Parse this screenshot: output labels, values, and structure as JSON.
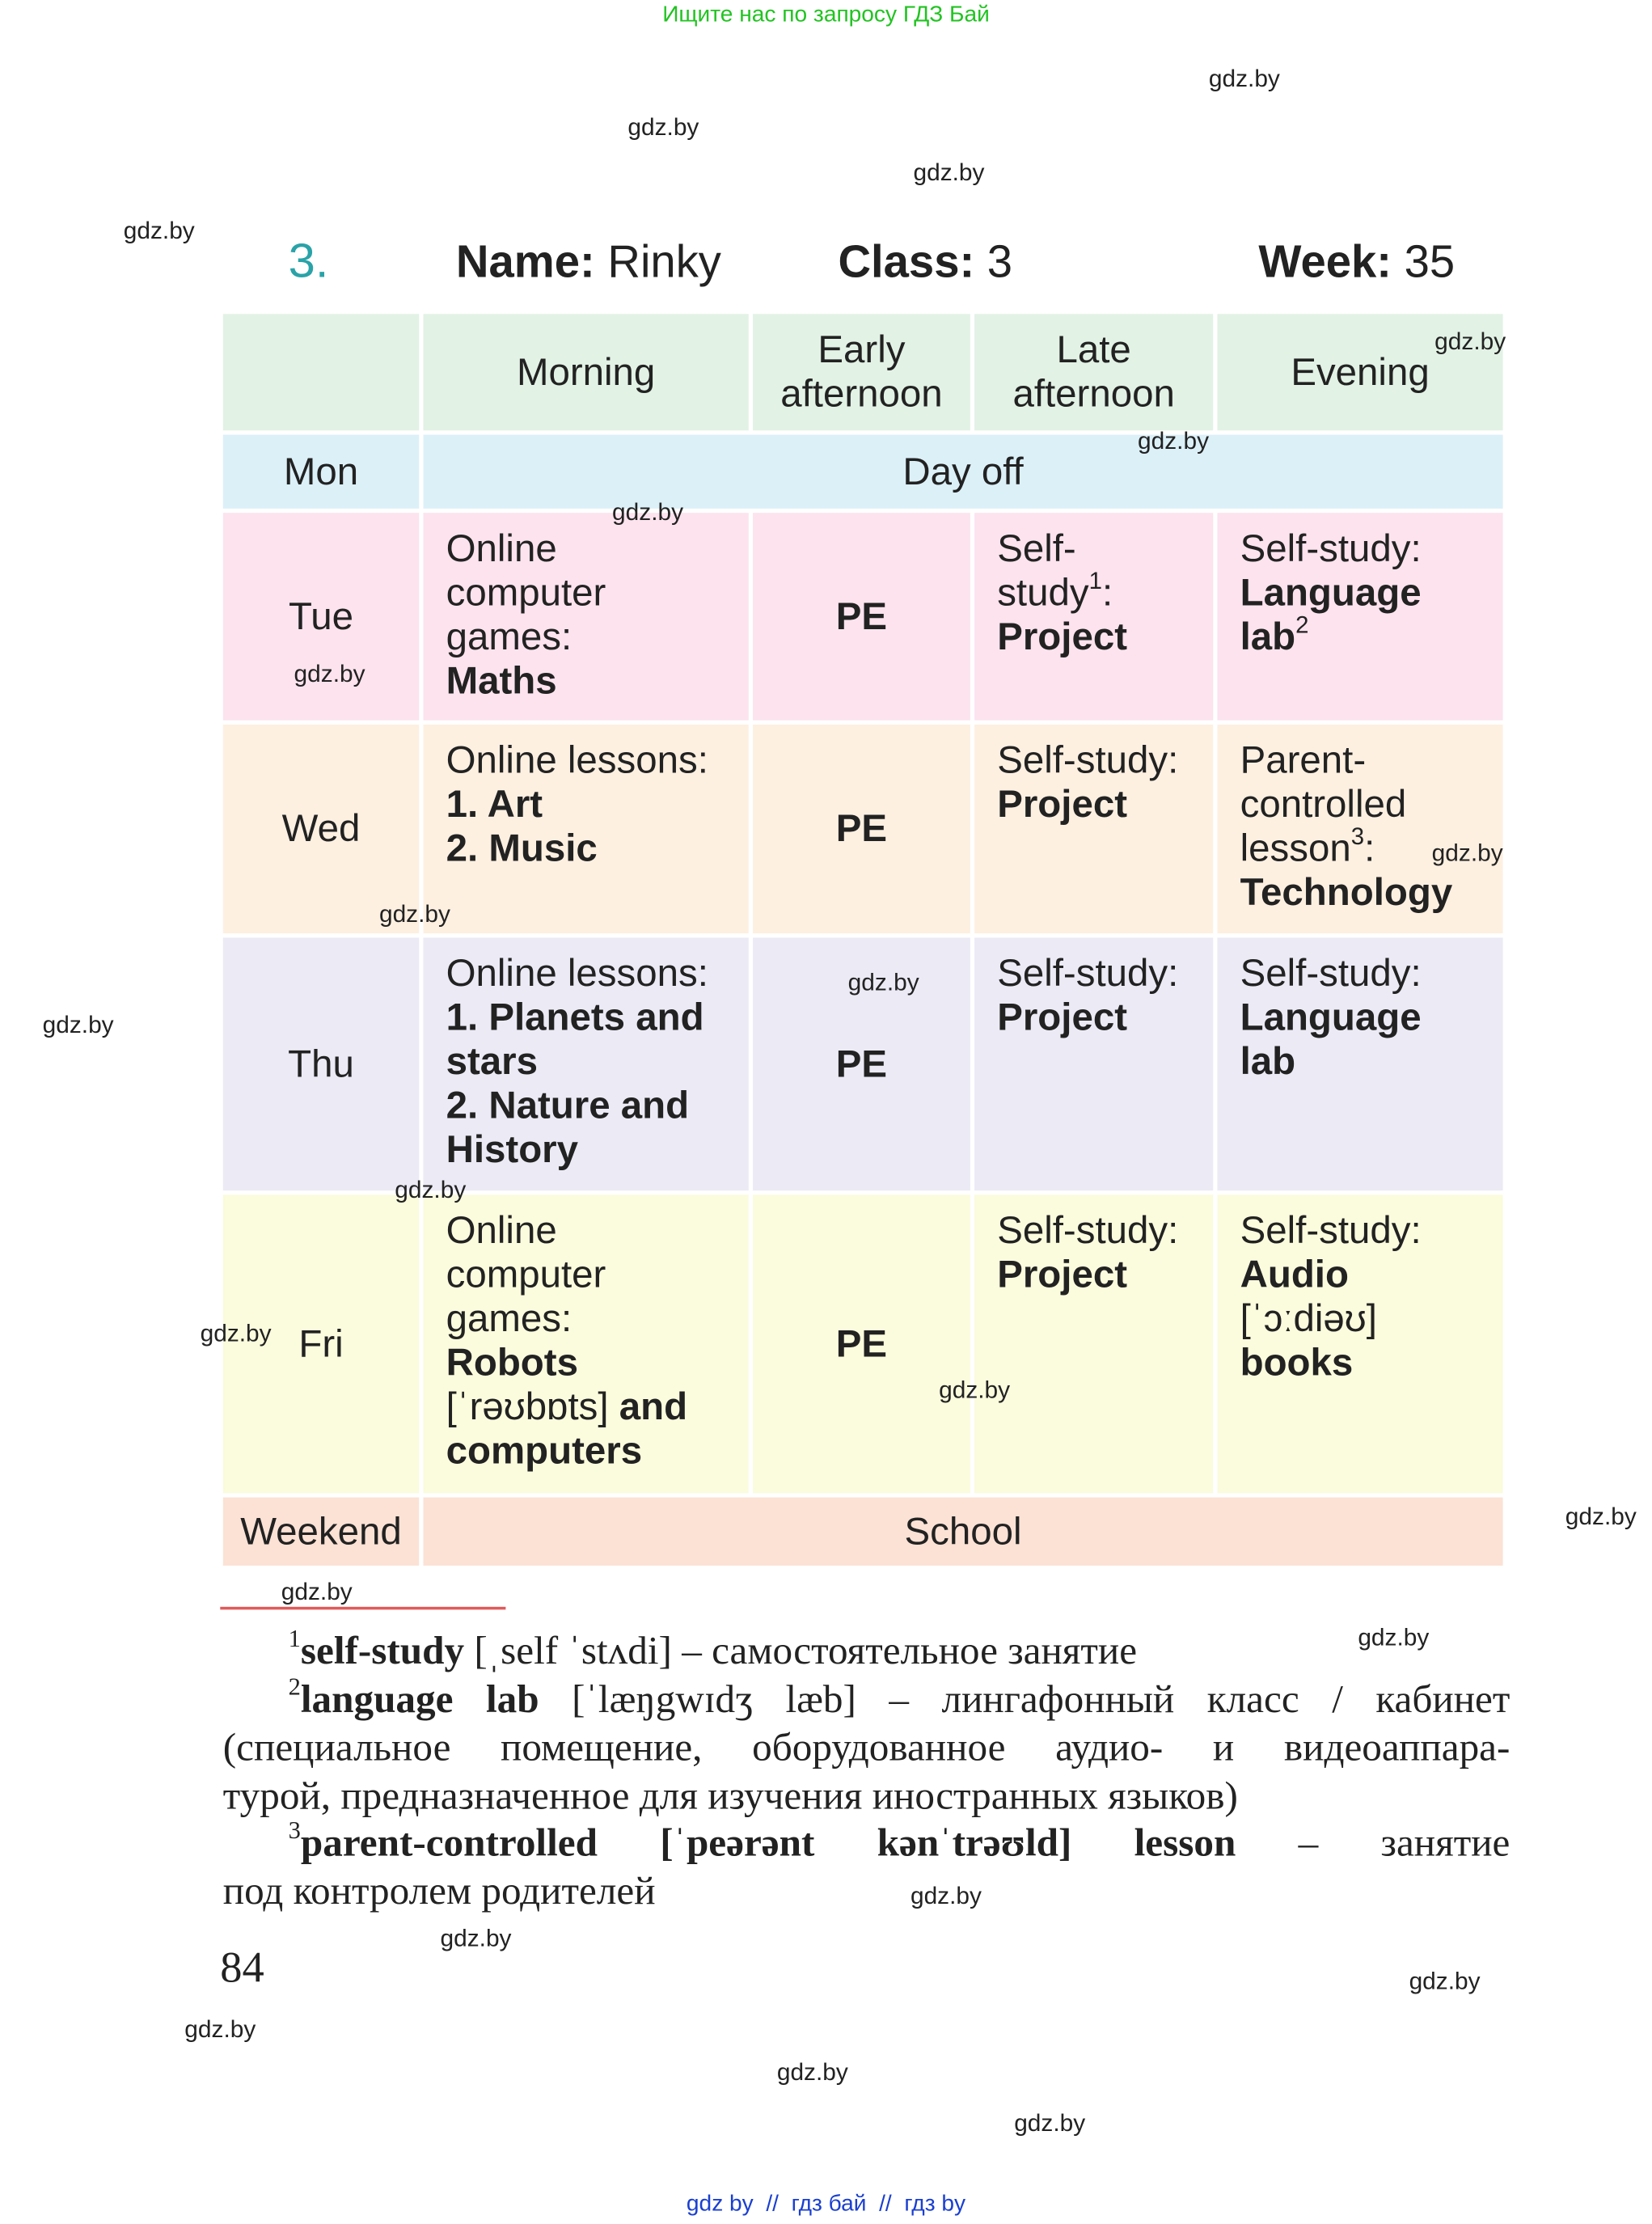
{
  "banner": "Ищите нас по запросу ГДЗ Бай",
  "exercise": {
    "number": "3.",
    "name_label": "Name:",
    "name": "Rinky",
    "class_label": "Class:",
    "class": "3",
    "week_label": "Week:",
    "week": "35"
  },
  "table": {
    "header": [
      [
        "Morning"
      ],
      [
        "Early",
        "afternoon"
      ],
      [
        "Late",
        "afternoon"
      ],
      [
        "Evening"
      ]
    ],
    "rows": [
      {
        "day": "Mon",
        "span": "Day off"
      },
      {
        "day": "Tue",
        "cells": [
          [
            [
              {
                "text": "Online"
              }
            ],
            [
              {
                "text": "computer"
              }
            ],
            [
              {
                "text": "games:"
              }
            ],
            [
              {
                "text": "Maths",
                "bold": true
              }
            ]
          ],
          [
            [
              {
                "text": "PE",
                "bold": true
              }
            ]
          ],
          [
            [
              {
                "text": "Self-"
              }
            ],
            [
              {
                "text": "study"
              },
              {
                "text": "1",
                "sup": true
              },
              {
                "text": ":"
              }
            ],
            [
              {
                "text": "Project",
                "bold": true
              }
            ]
          ],
          [
            [
              {
                "text": "Self-study:"
              }
            ],
            [
              {
                "text": "Language",
                "bold": true
              }
            ],
            [
              {
                "text": "lab",
                "bold": true
              },
              {
                "text": "2",
                "sup": true
              }
            ]
          ]
        ]
      },
      {
        "day": "Wed",
        "cells": [
          [
            [
              {
                "text": "Online lessons:"
              }
            ],
            [
              {
                "text": "1. Art",
                "bold": true
              }
            ],
            [
              {
                "text": "2. Music",
                "bold": true
              }
            ]
          ],
          [
            [
              {
                "text": "PE",
                "bold": true
              }
            ]
          ],
          [
            [
              {
                "text": "Self-study:"
              }
            ],
            [
              {
                "text": "Project",
                "bold": true
              }
            ]
          ],
          [
            [
              {
                "text": "Parent-"
              }
            ],
            [
              {
                "text": "controlled"
              }
            ],
            [
              {
                "text": "lesson"
              },
              {
                "text": "3",
                "sup": true
              },
              {
                "text": ":"
              }
            ],
            [
              {
                "text": "Technology",
                "bold": true
              }
            ]
          ]
        ]
      },
      {
        "day": "Thu",
        "cells": [
          [
            [
              {
                "text": "Online lessons:"
              }
            ],
            [
              {
                "text": "1. Planets and",
                "bold": true
              }
            ],
            [
              {
                "text": "stars",
                "bold": true
              }
            ],
            [
              {
                "text": "2. Nature and",
                "bold": true
              }
            ],
            [
              {
                "text": "History",
                "bold": true
              }
            ]
          ],
          [
            [
              {
                "text": "PE",
                "bold": true
              }
            ]
          ],
          [
            [
              {
                "text": "Self-study:"
              }
            ],
            [
              {
                "text": "Project",
                "bold": true
              }
            ]
          ],
          [
            [
              {
                "text": "Self-study:"
              }
            ],
            [
              {
                "text": "Language",
                "bold": true
              }
            ],
            [
              {
                "text": "lab",
                "bold": true
              }
            ]
          ]
        ]
      },
      {
        "day": "Fri",
        "cells": [
          [
            [
              {
                "text": "Online"
              }
            ],
            [
              {
                "text": "computer"
              }
            ],
            [
              {
                "text": "games:"
              }
            ],
            [
              {
                "text": "Robots",
                "bold": true
              }
            ],
            [
              {
                "text": "[ˈrəʊbɒts] "
              },
              {
                "text": "and",
                "bold": true
              }
            ],
            [
              {
                "text": "computers",
                "bold": true
              }
            ]
          ],
          [
            [
              {
                "text": "PE",
                "bold": true
              }
            ]
          ],
          [
            [
              {
                "text": "Self-study:"
              }
            ],
            [
              {
                "text": "Project",
                "bold": true
              }
            ]
          ],
          [
            [
              {
                "text": "Self-study:"
              }
            ],
            [
              {
                "text": "Audio",
                "bold": true
              }
            ],
            [
              {
                "text": "[ˈɔːdiəʊ]"
              }
            ],
            [
              {
                "text": "books",
                "bold": true
              }
            ]
          ]
        ]
      },
      {
        "day": "Weekend",
        "span": "School"
      }
    ]
  },
  "footnotes": [
    {
      "marker": "1",
      "lines": [
        [
          {
            "text": "self-study",
            "bold": true
          },
          {
            "text": " [ˌself ˈstʌdi] – самостоятельное занятие"
          }
        ]
      ]
    },
    {
      "marker": "2",
      "lines": [
        [
          {
            "text": "language lab",
            "bold": true
          },
          {
            "text": " [ˈlæŋgwɪdʒ læb] – лингафонный класс / кабинет"
          }
        ],
        [
          {
            "text": "(специальное помещение, оборудованное аудио- и видеоаппара-"
          }
        ],
        [
          {
            "text": "турой, предназначенное для изучения иностранных языков)"
          }
        ]
      ]
    },
    {
      "marker": "3",
      "lines": [
        [
          {
            "text": "parent-controlled [ˈpeərənt kənˈtrəʊld] lesson",
            "bold": true
          },
          {
            "text": " – занятие"
          }
        ],
        [
          {
            "text": "под контролем родителей"
          }
        ]
      ]
    }
  ],
  "page_number": "84",
  "watermarks": [
    "gdz.by",
    "gdz.by",
    "gdz.by",
    "gdz.by",
    "gdz.by",
    "gdz.by",
    "gdz.by",
    "gdz.by",
    "gdz.by",
    "gdz.by",
    "gdz.by",
    "gdz.by",
    "gdz.by",
    "gdz.by",
    "gdz.by",
    "gdz.by",
    "gdz.by",
    "gdz.by",
    "gdz.by",
    "gdz.by",
    "gdz.by",
    "gdz.by",
    "gdz.by",
    "gdz.by"
  ],
  "footer": "gdz by  //  гдз бай  //  гдз by"
}
